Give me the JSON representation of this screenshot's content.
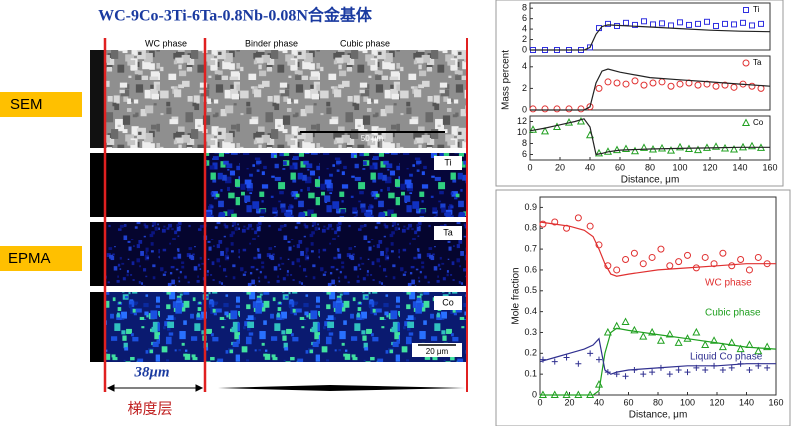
{
  "title": "WC-9Co-3Ti-6Ta-0.8Nb-0.08N合金基体",
  "labels": {
    "sem": "SEM",
    "epma": "EPMA"
  },
  "sem": {
    "phase_labels": [
      "WC phase",
      "Binder phase",
      "Cubic phase"
    ],
    "scale": "50 μm"
  },
  "epma": {
    "maps": [
      "Ti",
      "Ta",
      "Co"
    ],
    "scale": "20 μm"
  },
  "gradient": {
    "width": "38μm",
    "label": "梯度层"
  },
  "chart_data": [
    {
      "type": "scatter",
      "xlim": [
        0,
        160
      ],
      "ylim": [
        0,
        9
      ],
      "yticks": [
        0,
        2,
        4,
        6,
        8
      ],
      "series": [
        {
          "name": "Ti",
          "color": "#3030e0",
          "marker": "square",
          "x": [
            2,
            10,
            18,
            26,
            34,
            40,
            46,
            52,
            58,
            64,
            70,
            76,
            82,
            88,
            94,
            100,
            106,
            112,
            118,
            124,
            130,
            136,
            142,
            148,
            154
          ],
          "values": [
            0,
            0,
            0,
            0,
            0,
            0.5,
            4.2,
            5,
            4.6,
            5.2,
            4.8,
            5.5,
            4.9,
            5.1,
            4.7,
            5.3,
            4.8,
            5,
            5.4,
            4.6,
            5,
            4.9,
            5.2,
            4.7,
            5
          ]
        },
        {
          "color": "#222222",
          "x": [
            0,
            10,
            20,
            30,
            36,
            40,
            44,
            48,
            52,
            60,
            80,
            100,
            120,
            140,
            160
          ],
          "values": [
            0,
            0,
            0,
            0,
            0,
            0.5,
            3,
            4.5,
            4.8,
            4.7,
            4.4,
            4.1,
            3.8,
            3.6,
            3.5
          ]
        }
      ]
    },
    {
      "type": "scatter",
      "xlim": [
        0,
        160
      ],
      "ylim": [
        0,
        5
      ],
      "yticks": [
        0,
        2,
        4
      ],
      "ylabel": "Mass percent",
      "series": [
        {
          "name": "Ta",
          "color": "#e03030",
          "marker": "circle",
          "x": [
            2,
            10,
            18,
            26,
            34,
            40,
            46,
            52,
            58,
            64,
            70,
            76,
            82,
            88,
            94,
            100,
            106,
            112,
            118,
            124,
            130,
            136,
            142,
            148,
            154
          ],
          "values": [
            0.1,
            0.1,
            0.1,
            0.1,
            0.1,
            0.3,
            2,
            2.6,
            2.5,
            2.4,
            2.7,
            2.3,
            2.5,
            2.6,
            2.2,
            2.4,
            2.5,
            2.3,
            2.4,
            2.2,
            2.3,
            2.1,
            2.4,
            2.2,
            2
          ]
        },
        {
          "color": "#222222",
          "x": [
            0,
            10,
            20,
            30,
            36,
            40,
            44,
            48,
            52,
            60,
            80,
            100,
            120,
            140,
            160
          ],
          "values": [
            0,
            0,
            0,
            0,
            0,
            0.3,
            2.5,
            3.6,
            3.8,
            3.5,
            3,
            2.8,
            2.6,
            2.4,
            2.2
          ]
        }
      ]
    },
    {
      "type": "scatter",
      "xlim": [
        0,
        160
      ],
      "ylim": [
        5,
        13
      ],
      "yticks": [
        6,
        8,
        10,
        12
      ],
      "xticks": [
        0,
        20,
        40,
        60,
        80,
        100,
        120,
        140,
        160
      ],
      "xlabel": "Distance, μm",
      "series": [
        {
          "name": "Co",
          "color": "#20a020",
          "marker": "triangle",
          "x": [
            2,
            10,
            18,
            26,
            34,
            40,
            46,
            52,
            58,
            64,
            70,
            76,
            82,
            88,
            94,
            100,
            106,
            112,
            118,
            124,
            130,
            136,
            142,
            148,
            154
          ],
          "values": [
            10.5,
            10.2,
            11,
            11.8,
            12,
            9.5,
            6.2,
            6.5,
            6.8,
            7,
            6.6,
            7.2,
            6.9,
            7.1,
            6.7,
            7.3,
            7,
            6.8,
            7.2,
            7.4,
            7.1,
            6.9,
            7.3,
            7.5,
            7.2
          ]
        },
        {
          "color": "#222222",
          "x": [
            0,
            10,
            20,
            30,
            36,
            40,
            44,
            48,
            52,
            60,
            80,
            100,
            120,
            140,
            160
          ],
          "values": [
            10.3,
            10.8,
            11.4,
            12,
            12.5,
            11,
            6,
            6.2,
            6.5,
            6.8,
            7,
            7.1,
            7.2,
            7.3,
            7.3
          ]
        }
      ]
    },
    {
      "type": "scatter",
      "xlim": [
        0,
        160
      ],
      "ylim": [
        0,
        0.95
      ],
      "yticks": [
        0,
        0.1,
        0.2,
        0.3,
        0.4,
        0.5,
        0.6,
        0.7,
        0.8,
        0.9
      ],
      "xticks": [
        0,
        20,
        40,
        60,
        80,
        100,
        120,
        140,
        160
      ],
      "xlabel": "Distance, μm",
      "ylabel": "Mole fraction",
      "series": [
        {
          "name": "WC phase",
          "color": "#e03030",
          "marker": "circle",
          "x": [
            2,
            10,
            18,
            26,
            34,
            40,
            46,
            52,
            58,
            64,
            70,
            76,
            82,
            88,
            94,
            100,
            106,
            112,
            118,
            124,
            130,
            136,
            142,
            148,
            154
          ],
          "values": [
            0.82,
            0.83,
            0.8,
            0.85,
            0.81,
            0.72,
            0.62,
            0.6,
            0.65,
            0.68,
            0.63,
            0.66,
            0.7,
            0.62,
            0.64,
            0.67,
            0.61,
            0.66,
            0.63,
            0.68,
            0.62,
            0.65,
            0.6,
            0.66,
            0.63
          ]
        },
        {
          "color": "#e03030",
          "x": [
            0,
            10,
            20,
            30,
            36,
            40,
            44,
            48,
            52,
            60,
            80,
            100,
            120,
            140,
            160
          ],
          "values": [
            0.83,
            0.82,
            0.81,
            0.79,
            0.76,
            0.7,
            0.63,
            0.58,
            0.57,
            0.58,
            0.6,
            0.61,
            0.62,
            0.63,
            0.63
          ]
        },
        {
          "name": "Cubic  phase",
          "color": "#20a020",
          "marker": "triangle",
          "x": [
            2,
            10,
            18,
            26,
            34,
            40,
            46,
            52,
            58,
            64,
            70,
            76,
            82,
            88,
            94,
            100,
            106,
            112,
            118,
            124,
            130,
            136,
            142,
            148,
            154
          ],
          "values": [
            0,
            0,
            0,
            0,
            0,
            0.05,
            0.3,
            0.33,
            0.35,
            0.31,
            0.28,
            0.3,
            0.26,
            0.29,
            0.25,
            0.27,
            0.3,
            0.24,
            0.26,
            0.23,
            0.25,
            0.22,
            0.24,
            0.21,
            0.23
          ]
        },
        {
          "color": "#20a020",
          "x": [
            0,
            10,
            20,
            30,
            36,
            40,
            44,
            48,
            52,
            60,
            80,
            100,
            120,
            140,
            160
          ],
          "values": [
            0,
            0,
            0,
            0,
            0,
            0.02,
            0.2,
            0.3,
            0.32,
            0.31,
            0.29,
            0.27,
            0.25,
            0.23,
            0.22
          ]
        },
        {
          "name": "Liquid Co phase",
          "color": "#303090",
          "marker": "plus",
          "x": [
            2,
            10,
            18,
            26,
            34,
            40,
            46,
            52,
            58,
            64,
            70,
            76,
            82,
            88,
            94,
            100,
            106,
            112,
            118,
            124,
            130,
            136,
            142,
            148,
            154
          ],
          "values": [
            0.17,
            0.16,
            0.18,
            0.15,
            0.2,
            0.17,
            0.11,
            0.1,
            0.09,
            0.12,
            0.1,
            0.11,
            0.13,
            0.1,
            0.12,
            0.11,
            0.13,
            0.12,
            0.14,
            0.12,
            0.13,
            0.15,
            0.12,
            0.14,
            0.13
          ]
        },
        {
          "color": "#303090",
          "x": [
            0,
            10,
            20,
            30,
            36,
            40,
            44,
            48,
            52,
            60,
            80,
            100,
            120,
            140,
            160
          ],
          "values": [
            0.16,
            0.18,
            0.2,
            0.22,
            0.24,
            0.27,
            0.12,
            0.1,
            0.11,
            0.12,
            0.13,
            0.14,
            0.14,
            0.15,
            0.15
          ]
        }
      ]
    }
  ]
}
